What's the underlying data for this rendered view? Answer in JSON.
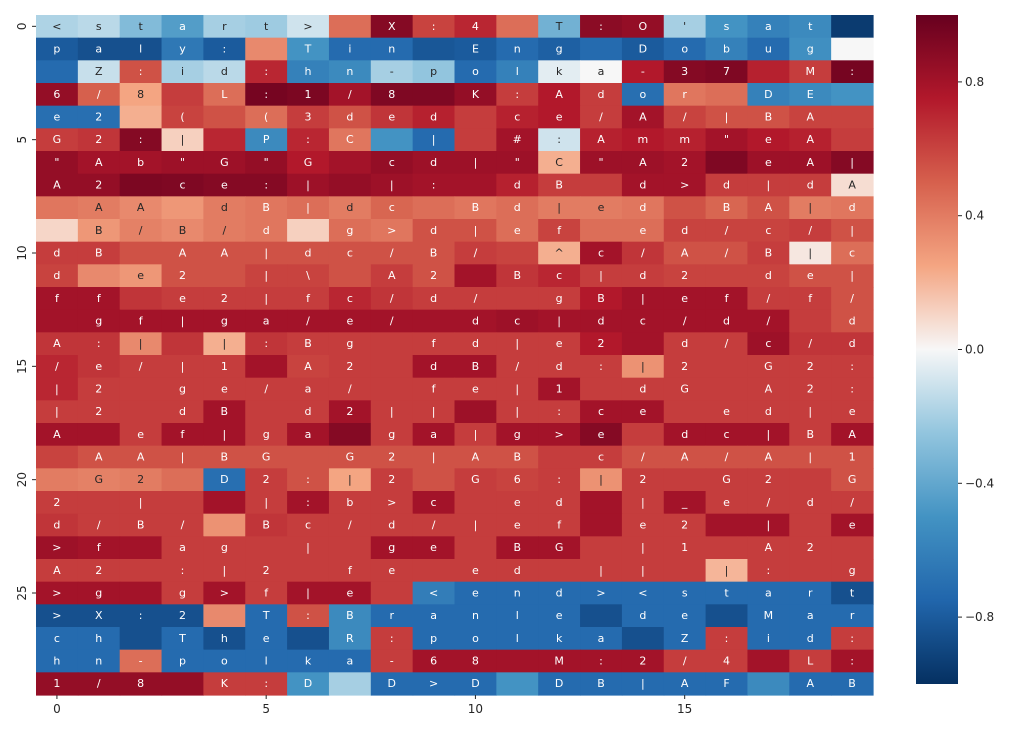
{
  "chart_data": {
    "type": "heatmap",
    "title": "",
    "xlabel": "",
    "ylabel": "",
    "n_rows": 30,
    "n_cols": 20,
    "x_ticks": [
      0,
      5,
      10,
      15
    ],
    "y_ticks": [
      0,
      5,
      10,
      15,
      20,
      25
    ],
    "colorbar": {
      "colormap": "RdBu_r",
      "vmin": -1.0,
      "vmax": 1.0,
      "ticks": [
        -0.8,
        -0.4,
        0.0,
        0.4,
        0.8
      ],
      "tick_labels": [
        "−0.8",
        "−0.4",
        "0.0",
        "0.4",
        "0.8"
      ]
    },
    "annotations": [
      [
        "<",
        "s",
        "t",
        "a",
        "r",
        "t",
        ">",
        "",
        "X",
        ":",
        "4",
        "",
        "T",
        ":",
        "O",
        "'",
        "s",
        "a",
        "t",
        ""
      ],
      [
        "p",
        "a",
        "l",
        "y",
        ":",
        "",
        "T",
        "i",
        "n",
        "",
        "E",
        "n",
        "g",
        "",
        "D",
        "o",
        "b",
        "u",
        "g",
        ""
      ],
      [
        "",
        "Z",
        ":",
        "i",
        "d",
        ":",
        "h",
        "n",
        "-",
        "p",
        "o",
        "l",
        "k",
        "a",
        "-",
        "3",
        "7",
        "",
        "M",
        ":"
      ],
      [
        "6",
        "/",
        "8",
        "",
        "L",
        ":",
        "1",
        "/",
        "8",
        "",
        "K",
        ":",
        "A",
        "d",
        "o",
        "r",
        "",
        "D",
        "E",
        ""
      ],
      [
        "e",
        "2",
        "",
        "(",
        "",
        "(",
        "3",
        "d",
        "e",
        "d",
        "",
        "c",
        "e",
        "/",
        "A",
        "/",
        "|",
        "B",
        "A",
        ""
      ],
      [
        "G",
        "2",
        ":",
        "|",
        "",
        "P",
        ":",
        "C",
        "",
        "|",
        "",
        "#",
        ":",
        "A",
        "m",
        "m",
        "\"",
        "e",
        "A",
        ""
      ],
      [
        "\"",
        "A",
        "b",
        "\"",
        "G",
        "\"",
        "G",
        "",
        "c",
        "d",
        "|",
        "\"",
        "C",
        "\"",
        "A",
        "2",
        "",
        "e",
        "A",
        "|"
      ],
      [
        "A",
        "2",
        "",
        "c",
        "e",
        ":",
        "|",
        "",
        "|",
        ":",
        "",
        "d",
        "B",
        "",
        "d",
        ">",
        "d",
        "|",
        "d",
        "A"
      ],
      [
        "",
        "A",
        "A",
        "",
        "d",
        "B",
        "|",
        "d",
        "c",
        "",
        "B",
        "d",
        "|",
        "e",
        "d",
        "",
        "B",
        "A",
        "|",
        "d"
      ],
      [
        "",
        "B",
        "/",
        "B",
        "/",
        "d",
        "",
        "g",
        ">",
        "d",
        "|",
        "e",
        "f",
        "",
        "e",
        "d",
        "/",
        "c",
        "/",
        "|"
      ],
      [
        "d",
        "B",
        "",
        "A",
        "A",
        "|",
        "d",
        "c",
        "/",
        "B",
        "/",
        "",
        "^",
        "c",
        "/",
        "A",
        "/",
        "B",
        "|",
        "c"
      ],
      [
        "d",
        "",
        "e",
        "2",
        "",
        "|",
        "\\",
        "",
        "A",
        "2",
        "",
        "B",
        "c",
        "|",
        "d",
        "2",
        "",
        "d",
        "e",
        "|"
      ],
      [
        "f",
        "f",
        "",
        "e",
        "2",
        "|",
        "f",
        "c",
        "/",
        "d",
        "/",
        "",
        "g",
        "B",
        "|",
        "e",
        "f",
        "/",
        "f",
        "/"
      ],
      [
        "",
        "g",
        "f",
        "|",
        "g",
        "a",
        "/",
        "e",
        "/",
        "",
        "d",
        "c",
        "|",
        "d",
        "c",
        "/",
        "d",
        "/",
        "",
        "d"
      ],
      [
        "A",
        ":",
        "|",
        "",
        "|",
        ":",
        "B",
        "g",
        "",
        "f",
        "d",
        "|",
        "e",
        "2",
        "",
        "d",
        "/",
        "c",
        "/",
        "d"
      ],
      [
        "/",
        "e",
        "/",
        "|",
        "1",
        "",
        "A",
        "2",
        "",
        "d",
        "B",
        "/",
        "d",
        ":",
        "|",
        "2",
        "",
        "G",
        "2",
        ":"
      ],
      [
        "|",
        "2",
        "",
        "g",
        "e",
        "/",
        "a",
        "/",
        "",
        "f",
        "e",
        "|",
        "1",
        "",
        "d",
        "G",
        "",
        "A",
        "2",
        ":"
      ],
      [
        "|",
        "2",
        "",
        "d",
        "B",
        "",
        "d",
        "2",
        "|",
        "|",
        "",
        "|",
        ":",
        "c",
        "e",
        "",
        "e",
        "d",
        "|",
        "e"
      ],
      [
        "A",
        "",
        "e",
        "f",
        "|",
        "g",
        "a",
        "",
        "g",
        "a",
        "|",
        "g",
        ">",
        "e",
        "",
        "d",
        "c",
        "|",
        "B",
        "A"
      ],
      [
        "",
        "A",
        "A",
        "|",
        "B",
        "G",
        "",
        "G",
        "2",
        "|",
        "A",
        "B",
        "",
        "c",
        "/",
        "A",
        "/",
        "A",
        "|",
        "1"
      ],
      [
        "",
        "G",
        "2",
        "",
        "D",
        "2",
        ":",
        "|",
        "2",
        "",
        "G",
        "6",
        ":",
        "|",
        "2",
        "",
        "G",
        "2",
        "",
        "G"
      ],
      [
        "2",
        "",
        "|",
        "",
        "",
        "|",
        ":",
        "b",
        ">",
        "c",
        "",
        "e",
        "d",
        "",
        "|",
        "_",
        "e",
        "/",
        "d",
        "/"
      ],
      [
        "d",
        "/",
        "B",
        "/",
        "",
        "B",
        "c",
        "/",
        "d",
        "/",
        "|",
        "e",
        "f",
        "",
        "e",
        "2",
        "",
        "|",
        "",
        "e"
      ],
      [
        ">",
        "f",
        "",
        "a",
        "g",
        "",
        "|",
        "",
        "g",
        "e",
        "",
        "B",
        "G",
        "",
        "|",
        "1",
        "",
        "A",
        "2",
        ""
      ],
      [
        "A",
        "2",
        "",
        ":",
        "|",
        "2",
        "",
        "f",
        "e",
        "",
        "e",
        "d",
        "",
        "|",
        "|",
        "",
        "|",
        ":",
        "",
        "g"
      ],
      [
        ">",
        "g",
        "",
        "g",
        ">",
        "f",
        "|",
        "e",
        "",
        "<",
        "e",
        "n",
        "d",
        ">",
        "<",
        "s",
        "t",
        "a",
        "r",
        "t"
      ],
      [
        ">",
        "X",
        ":",
        "2",
        "",
        "T",
        ":",
        "B",
        "r",
        "a",
        "n",
        "l",
        "e",
        "",
        "d",
        "e",
        "",
        "M",
        "a",
        "r"
      ],
      [
        "c",
        "h",
        "",
        "T",
        "h",
        "e",
        "",
        "R",
        ":",
        "p",
        "o",
        "l",
        "k",
        "a",
        "",
        "Z",
        ":",
        "i",
        "d",
        ":"
      ],
      [
        "h",
        "n",
        "-",
        "p",
        "o",
        "l",
        "k",
        "a",
        "-",
        "6",
        "8",
        "",
        "M",
        ":",
        "2",
        "/",
        "4",
        "",
        "L",
        ":"
      ],
      [
        "1",
        "/",
        "8",
        "",
        "K",
        ":",
        "D",
        "",
        "D",
        ">",
        "D",
        "",
        "D",
        "B",
        "|",
        "A",
        "F",
        "",
        "A",
        "B"
      ]
    ],
    "values": [
      [
        -0.18,
        -0.15,
        -0.3,
        -0.45,
        -0.2,
        -0.22,
        -0.1,
        0.45,
        0.9,
        0.6,
        0.7,
        0.45,
        -0.35,
        0.88,
        0.85,
        -0.2,
        -0.5,
        -0.6,
        -0.55,
        -0.95
      ],
      [
        -0.8,
        -0.85,
        -0.85,
        -0.65,
        -0.8,
        0.35,
        -0.5,
        -0.72,
        -0.72,
        -0.82,
        -0.8,
        -0.72,
        -0.78,
        -0.72,
        -0.8,
        -0.72,
        -0.6,
        -0.72,
        -0.52,
        0.0
      ],
      [
        -0.72,
        -0.12,
        0.55,
        -0.2,
        -0.15,
        0.7,
        -0.6,
        -0.55,
        -0.2,
        -0.25,
        -0.72,
        -0.6,
        -0.05,
        0.0,
        0.75,
        0.9,
        0.92,
        0.72,
        0.62,
        0.95
      ],
      [
        0.85,
        0.5,
        0.25,
        0.62,
        0.45,
        0.95,
        0.93,
        0.8,
        0.92,
        0.92,
        0.85,
        0.62,
        0.75,
        0.62,
        -0.7,
        0.42,
        0.45,
        -0.6,
        -0.55,
        -0.5
      ],
      [
        -0.7,
        -0.7,
        0.22,
        0.6,
        0.55,
        0.45,
        0.62,
        0.55,
        0.65,
        0.72,
        0.62,
        0.72,
        0.75,
        0.62,
        0.8,
        0.6,
        0.55,
        0.55,
        0.6,
        0.6
      ],
      [
        0.62,
        0.65,
        0.9,
        0.12,
        0.7,
        -0.55,
        0.7,
        0.42,
        -0.5,
        -0.72,
        0.62,
        0.8,
        -0.1,
        0.72,
        0.75,
        0.72,
        0.8,
        0.75,
        0.72,
        0.62
      ],
      [
        0.85,
        0.8,
        0.8,
        0.82,
        0.82,
        0.85,
        0.75,
        0.8,
        0.85,
        0.82,
        0.82,
        0.82,
        0.22,
        0.82,
        0.82,
        0.8,
        0.92,
        0.82,
        0.82,
        0.9
      ],
      [
        0.85,
        0.85,
        0.93,
        0.92,
        0.9,
        0.9,
        0.82,
        0.85,
        0.82,
        0.8,
        0.8,
        0.72,
        0.62,
        0.62,
        0.8,
        0.8,
        0.62,
        0.62,
        0.62,
        0.08
      ],
      [
        0.42,
        0.4,
        0.35,
        0.3,
        0.4,
        0.42,
        0.45,
        0.4,
        0.48,
        0.45,
        0.42,
        0.45,
        0.4,
        0.4,
        0.42,
        0.55,
        0.48,
        0.55,
        0.4,
        0.42
      ],
      [
        0.1,
        0.3,
        0.38,
        0.35,
        0.4,
        0.42,
        0.12,
        0.45,
        0.42,
        0.55,
        0.55,
        0.45,
        0.6,
        0.45,
        0.45,
        0.6,
        0.6,
        0.6,
        0.62,
        0.55
      ],
      [
        0.62,
        0.62,
        0.55,
        0.55,
        0.55,
        0.55,
        0.55,
        0.55,
        0.55,
        0.55,
        0.62,
        0.6,
        0.22,
        0.8,
        0.65,
        0.55,
        0.55,
        0.62,
        0.05,
        0.45
      ],
      [
        0.6,
        0.35,
        0.3,
        0.55,
        0.55,
        0.6,
        0.6,
        0.55,
        0.62,
        0.55,
        0.8,
        0.65,
        0.7,
        0.62,
        0.62,
        0.6,
        0.6,
        0.6,
        0.55,
        0.55
      ],
      [
        0.8,
        0.8,
        0.65,
        0.62,
        0.62,
        0.62,
        0.62,
        0.7,
        0.65,
        0.62,
        0.62,
        0.62,
        0.62,
        0.75,
        0.8,
        0.8,
        0.8,
        0.62,
        0.62,
        0.55
      ],
      [
        0.8,
        0.8,
        0.8,
        0.8,
        0.8,
        0.8,
        0.8,
        0.8,
        0.8,
        0.8,
        0.8,
        0.82,
        0.8,
        0.8,
        0.8,
        0.8,
        0.8,
        0.8,
        0.62,
        0.55
      ],
      [
        0.65,
        0.65,
        0.35,
        0.65,
        0.22,
        0.65,
        0.62,
        0.62,
        0.62,
        0.62,
        0.62,
        0.62,
        0.62,
        0.75,
        0.8,
        0.62,
        0.62,
        0.82,
        0.65,
        0.65
      ],
      [
        0.7,
        0.65,
        0.62,
        0.62,
        0.62,
        0.8,
        0.6,
        0.62,
        0.62,
        0.8,
        0.8,
        0.62,
        0.62,
        0.62,
        0.32,
        0.62,
        0.62,
        0.62,
        0.62,
        0.62
      ],
      [
        0.7,
        0.62,
        0.62,
        0.62,
        0.62,
        0.62,
        0.62,
        0.62,
        0.62,
        0.62,
        0.62,
        0.62,
        0.8,
        0.62,
        0.62,
        0.62,
        0.62,
        0.62,
        0.62,
        0.62
      ],
      [
        0.62,
        0.62,
        0.62,
        0.62,
        0.8,
        0.62,
        0.62,
        0.8,
        0.62,
        0.62,
        0.82,
        0.62,
        0.62,
        0.8,
        0.8,
        0.62,
        0.62,
        0.62,
        0.62,
        0.62
      ],
      [
        0.8,
        0.8,
        0.62,
        0.8,
        0.8,
        0.62,
        0.8,
        0.9,
        0.62,
        0.8,
        0.62,
        0.8,
        0.8,
        0.9,
        0.62,
        0.8,
        0.8,
        0.8,
        0.62,
        0.8
      ],
      [
        0.6,
        0.55,
        0.55,
        0.55,
        0.55,
        0.55,
        0.55,
        0.55,
        0.55,
        0.55,
        0.55,
        0.55,
        0.62,
        0.62,
        0.55,
        0.55,
        0.55,
        0.55,
        0.55,
        0.55
      ],
      [
        0.4,
        0.38,
        0.4,
        0.45,
        -0.7,
        0.62,
        0.55,
        0.25,
        0.62,
        0.55,
        0.62,
        0.6,
        0.62,
        0.32,
        0.62,
        0.62,
        0.62,
        0.62,
        0.62,
        0.55
      ],
      [
        0.62,
        0.62,
        0.62,
        0.62,
        0.8,
        0.62,
        0.8,
        0.62,
        0.62,
        0.8,
        0.62,
        0.62,
        0.62,
        0.8,
        0.62,
        0.8,
        0.62,
        0.62,
        0.62,
        0.62
      ],
      [
        0.65,
        0.62,
        0.62,
        0.62,
        0.32,
        0.65,
        0.62,
        0.62,
        0.62,
        0.62,
        0.62,
        0.62,
        0.62,
        0.8,
        0.62,
        0.62,
        0.8,
        0.8,
        0.62,
        0.8
      ],
      [
        0.82,
        0.8,
        0.8,
        0.62,
        0.62,
        0.62,
        0.62,
        0.62,
        0.8,
        0.8,
        0.62,
        0.8,
        0.8,
        0.62,
        0.62,
        0.62,
        0.62,
        0.62,
        0.62,
        0.62
      ],
      [
        0.62,
        0.62,
        0.62,
        0.62,
        0.62,
        0.62,
        0.62,
        0.62,
        0.62,
        0.62,
        0.62,
        0.62,
        0.62,
        0.62,
        0.62,
        0.62,
        0.2,
        0.62,
        0.62,
        0.62
      ],
      [
        0.8,
        0.8,
        0.8,
        0.62,
        0.8,
        0.62,
        0.8,
        0.8,
        0.62,
        -0.62,
        -0.72,
        -0.72,
        -0.72,
        -0.72,
        -0.72,
        -0.72,
        -0.72,
        -0.72,
        -0.72,
        -0.85
      ],
      [
        -0.85,
        -0.85,
        -0.85,
        -0.85,
        0.35,
        -0.72,
        0.55,
        -0.55,
        -0.72,
        -0.72,
        -0.72,
        -0.72,
        -0.72,
        -0.85,
        -0.72,
        -0.72,
        -0.85,
        -0.72,
        -0.72,
        -0.72
      ],
      [
        -0.72,
        -0.72,
        -0.85,
        -0.72,
        -0.85,
        -0.72,
        -0.85,
        -0.55,
        0.62,
        -0.72,
        -0.72,
        -0.72,
        -0.72,
        -0.72,
        -0.85,
        -0.72,
        0.62,
        -0.72,
        -0.72,
        0.62
      ],
      [
        -0.72,
        -0.72,
        0.45,
        -0.72,
        -0.72,
        -0.72,
        -0.72,
        -0.72,
        0.62,
        0.8,
        0.8,
        0.8,
        0.8,
        0.8,
        0.8,
        0.62,
        0.62,
        0.8,
        0.62,
        0.8
      ],
      [
        0.85,
        0.85,
        0.85,
        0.85,
        0.62,
        0.62,
        -0.5,
        -0.2,
        -0.72,
        -0.72,
        -0.72,
        -0.5,
        -0.72,
        -0.72,
        -0.72,
        -0.72,
        -0.72,
        -0.55,
        -0.72,
        -0.72
      ]
    ]
  }
}
